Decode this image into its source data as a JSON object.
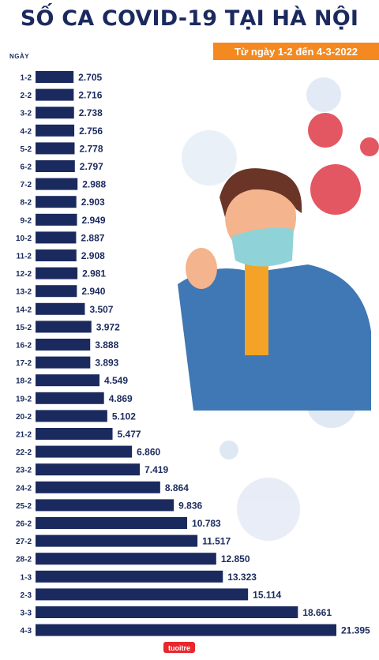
{
  "title": "SỐ CA COVID-19 TẠI HÀ NỘI",
  "subtitle": "Từ ngày 1-2 đến 4-3-2022",
  "logo": "tuoitre",
  "chart_data": {
    "type": "bar",
    "orientation": "horizontal",
    "ylabel": "NGÀY",
    "bar_color": "#1b2a5e",
    "categories": [
      "1-2",
      "2-2",
      "3-2",
      "4-2",
      "5-2",
      "6-2",
      "7-2",
      "8-2",
      "9-2",
      "10-2",
      "11-2",
      "12-2",
      "13-2",
      "14-2",
      "15-2",
      "16-2",
      "17-2",
      "18-2",
      "19-2",
      "20-2",
      "21-2",
      "22-2",
      "23-2",
      "24-2",
      "25-2",
      "26-2",
      "27-2",
      "28-2",
      "1-3",
      "2-3",
      "3-3",
      "4-3"
    ],
    "values": [
      2705,
      2716,
      2738,
      2756,
      2778,
      2797,
      2988,
      2903,
      2949,
      2887,
      2908,
      2981,
      2940,
      3507,
      3972,
      3888,
      3893,
      4549,
      4869,
      5102,
      5477,
      6860,
      7419,
      8864,
      9836,
      10783,
      11517,
      12850,
      13323,
      15114,
      18661,
      21395
    ],
    "value_labels": [
      "2.705",
      "2.716",
      "2.738",
      "2.756",
      "2.778",
      "2.797",
      "2.988",
      "2.903",
      "2.949",
      "2.887",
      "2.908",
      "2.981",
      "2.940",
      "3.507",
      "3.972",
      "3.888",
      "3.893",
      "4.549",
      "4.869",
      "5.102",
      "5.477",
      "6.860",
      "7.419",
      "8.864",
      "9.836",
      "10.783",
      "11.517",
      "12.850",
      "13.323",
      "15.114",
      "18.661",
      "21.395"
    ],
    "xlim": [
      0,
      21395
    ]
  }
}
